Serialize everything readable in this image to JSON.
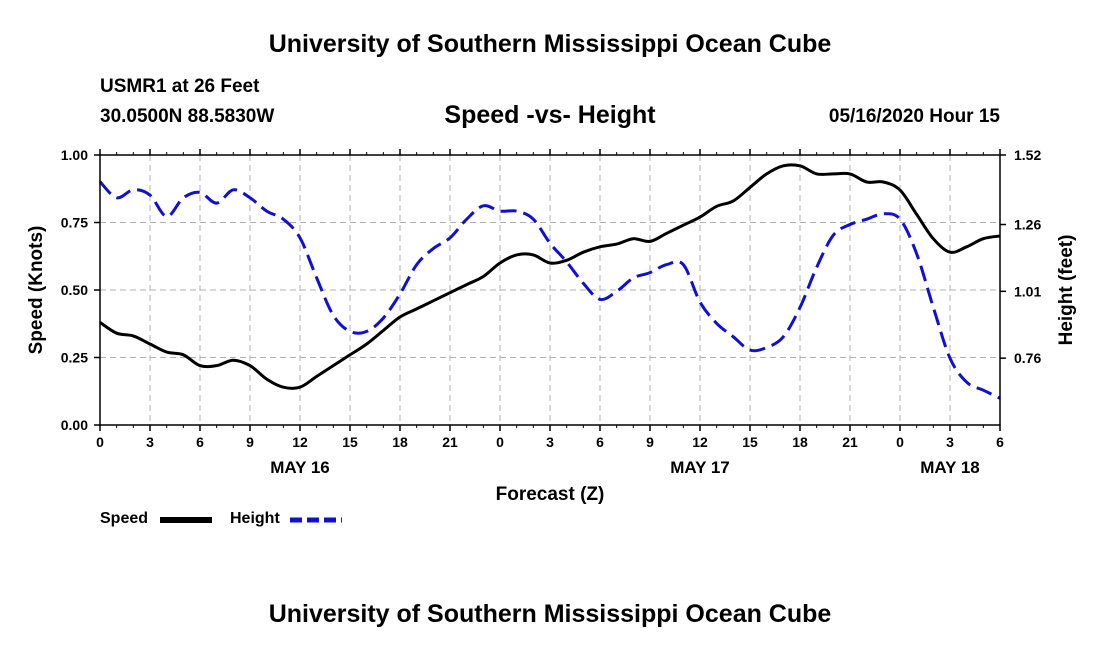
{
  "header": {
    "title_top": "University of Southern Mississippi Ocean Cube",
    "station": "USMR1 at 26 Feet",
    "coords": "30.0500N 88.5830W",
    "subtitle": "Speed -vs- Height",
    "datetime": "05/16/2020 Hour 15"
  },
  "footer": {
    "title_bottom": "University of Southern Mississippi Ocean Cube"
  },
  "legend": {
    "speed_label": "Speed",
    "height_label": "Height"
  },
  "colors": {
    "speed": "#000000",
    "height": "#1010d0",
    "grid": "#b0b0b0"
  },
  "chart_data": {
    "type": "line",
    "title": "Speed -vs- Height",
    "xlabel": "Forecast (Z)",
    "ylabel": "Speed (Knots)",
    "ylabel_right": "Height (feet)",
    "xlim": [
      0,
      54
    ],
    "ylim": [
      0,
      1
    ],
    "ylim_right": [
      0.51,
      1.52
    ],
    "x_ticks": [
      0,
      3,
      6,
      9,
      12,
      15,
      18,
      21,
      24,
      27,
      30,
      33,
      36,
      39,
      42,
      45,
      48,
      51,
      54
    ],
    "x_tick_labels": [
      "0",
      "3",
      "6",
      "9",
      "12",
      "15",
      "18",
      "21",
      "0",
      "3",
      "6",
      "9",
      "12",
      "15",
      "18",
      "21",
      "0",
      "3",
      "6"
    ],
    "date_labels": [
      {
        "x": 12,
        "label": "MAY 16"
      },
      {
        "x": 36,
        "label": "MAY 17"
      },
      {
        "x": 51,
        "label": "MAY 18"
      }
    ],
    "y_ticks": [
      0,
      0.25,
      0.5,
      0.75,
      1.0
    ],
    "y_tick_labels": [
      "0.00",
      "0.25",
      "0.50",
      "0.75",
      "1.00"
    ],
    "y_ticks_right": [
      0.76,
      1.01,
      1.26,
      1.52
    ],
    "y_tick_labels_right": [
      "0.76",
      "1.01",
      "1.26",
      "1.52"
    ],
    "grid": true,
    "series": [
      {
        "name": "Speed",
        "axis": "left",
        "style": "solid",
        "x": [
          0,
          1,
          2,
          3,
          4,
          5,
          6,
          7,
          8,
          9,
          10,
          11,
          12,
          13,
          14,
          15,
          16,
          17,
          18,
          19,
          20,
          21,
          22,
          23,
          24,
          25,
          26,
          27,
          28,
          29,
          30,
          31,
          32,
          33,
          34,
          35,
          36,
          37,
          38,
          39,
          40,
          41,
          42,
          43,
          44,
          45,
          46,
          47,
          48,
          49,
          50,
          51,
          52,
          53,
          54
        ],
        "values": [
          0.38,
          0.34,
          0.33,
          0.3,
          0.27,
          0.26,
          0.22,
          0.22,
          0.24,
          0.22,
          0.17,
          0.14,
          0.14,
          0.18,
          0.22,
          0.26,
          0.3,
          0.35,
          0.4,
          0.43,
          0.46,
          0.49,
          0.52,
          0.55,
          0.6,
          0.63,
          0.63,
          0.6,
          0.61,
          0.64,
          0.66,
          0.67,
          0.69,
          0.68,
          0.71,
          0.74,
          0.77,
          0.81,
          0.83,
          0.88,
          0.93,
          0.96,
          0.96,
          0.93,
          0.93,
          0.93,
          0.9,
          0.9,
          0.87,
          0.78,
          0.69,
          0.64,
          0.66,
          0.69,
          0.7
        ]
      },
      {
        "name": "Height",
        "axis": "right",
        "style": "dashed",
        "x": [
          0,
          1,
          2,
          3,
          4,
          5,
          6,
          7,
          8,
          9,
          10,
          11,
          12,
          13,
          14,
          15,
          16,
          17,
          18,
          19,
          20,
          21,
          22,
          23,
          24,
          25,
          26,
          27,
          28,
          29,
          30,
          31,
          32,
          33,
          34,
          35,
          36,
          37,
          38,
          39,
          40,
          41,
          42,
          43,
          44,
          45,
          46,
          47,
          48,
          49,
          50,
          51,
          52,
          53,
          54
        ],
        "values": [
          1.42,
          1.36,
          1.39,
          1.37,
          1.29,
          1.36,
          1.38,
          1.34,
          1.39,
          1.36,
          1.31,
          1.28,
          1.21,
          1.06,
          0.92,
          0.86,
          0.86,
          0.91,
          1.0,
          1.11,
          1.17,
          1.21,
          1.28,
          1.33,
          1.31,
          1.31,
          1.28,
          1.19,
          1.12,
          1.04,
          0.98,
          1.01,
          1.06,
          1.08,
          1.11,
          1.11,
          0.97,
          0.89,
          0.84,
          0.79,
          0.8,
          0.84,
          0.95,
          1.1,
          1.22,
          1.26,
          1.28,
          1.3,
          1.28,
          1.15,
          0.95,
          0.76,
          0.67,
          0.64,
          0.61
        ]
      }
    ]
  }
}
